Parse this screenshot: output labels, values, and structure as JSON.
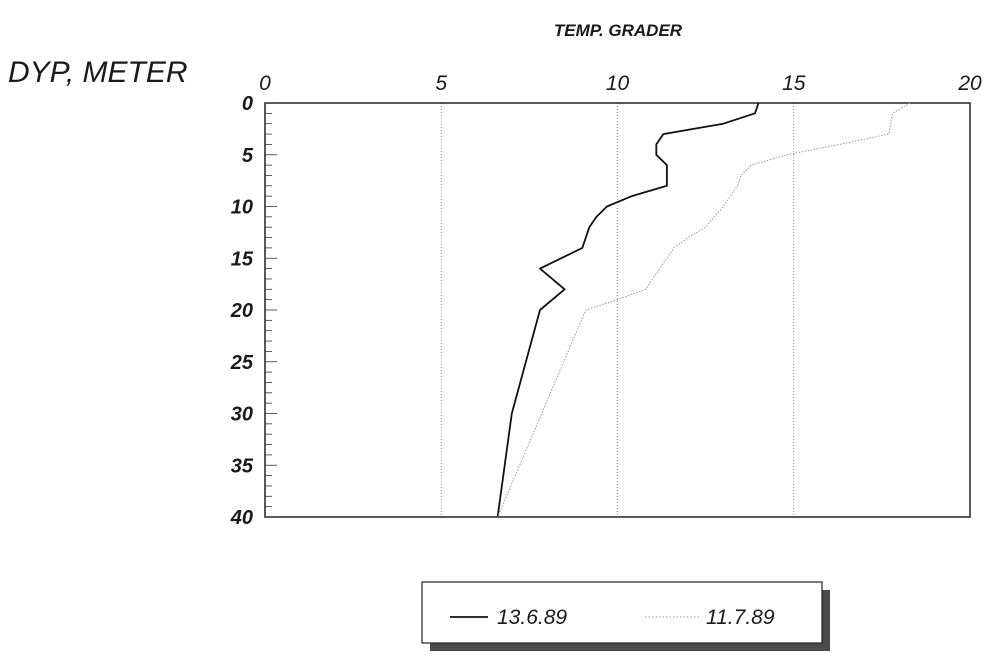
{
  "chart_data": {
    "type": "line",
    "title": "",
    "xlabel": "TEMP. GRADER",
    "ylabel": "DYP, METER",
    "xlim": [
      0,
      20
    ],
    "ylim": [
      0,
      40
    ],
    "y_inverted": true,
    "x_ticks": [
      "0",
      "5",
      "10",
      "15",
      "20"
    ],
    "y_ticks": [
      "0",
      "5",
      "10",
      "15",
      "20",
      "25",
      "30",
      "35",
      "40"
    ],
    "grid": "vertical dotted lines at x ticks",
    "legend_position": "bottom-center",
    "series": [
      {
        "name": "13.6.89",
        "color": "#111111",
        "style": "solid",
        "points": [
          [
            14.0,
            0
          ],
          [
            13.9,
            1
          ],
          [
            13.0,
            2
          ],
          [
            11.3,
            3
          ],
          [
            11.1,
            4
          ],
          [
            11.1,
            5
          ],
          [
            11.4,
            6
          ],
          [
            11.4,
            7
          ],
          [
            11.4,
            8
          ],
          [
            10.4,
            9
          ],
          [
            9.7,
            10
          ],
          [
            9.4,
            11
          ],
          [
            9.2,
            12
          ],
          [
            9.1,
            13
          ],
          [
            9.0,
            14
          ],
          [
            7.8,
            16
          ],
          [
            8.5,
            18
          ],
          [
            7.8,
            20
          ],
          [
            7.0,
            30
          ],
          [
            6.6,
            40
          ]
        ]
      },
      {
        "name": "11.7.89",
        "color": "#9a9a9a",
        "style": "dotted",
        "points": [
          [
            18.3,
            0
          ],
          [
            17.8,
            1
          ],
          [
            17.7,
            3
          ],
          [
            16.3,
            4
          ],
          [
            14.8,
            5
          ],
          [
            13.8,
            6
          ],
          [
            13.5,
            7
          ],
          [
            13.4,
            8
          ],
          [
            13.0,
            10
          ],
          [
            12.5,
            12
          ],
          [
            12.0,
            13
          ],
          [
            11.6,
            14
          ],
          [
            11.2,
            16
          ],
          [
            10.8,
            18
          ],
          [
            10.0,
            19
          ],
          [
            9.1,
            20
          ],
          [
            6.6,
            40
          ]
        ]
      }
    ]
  }
}
